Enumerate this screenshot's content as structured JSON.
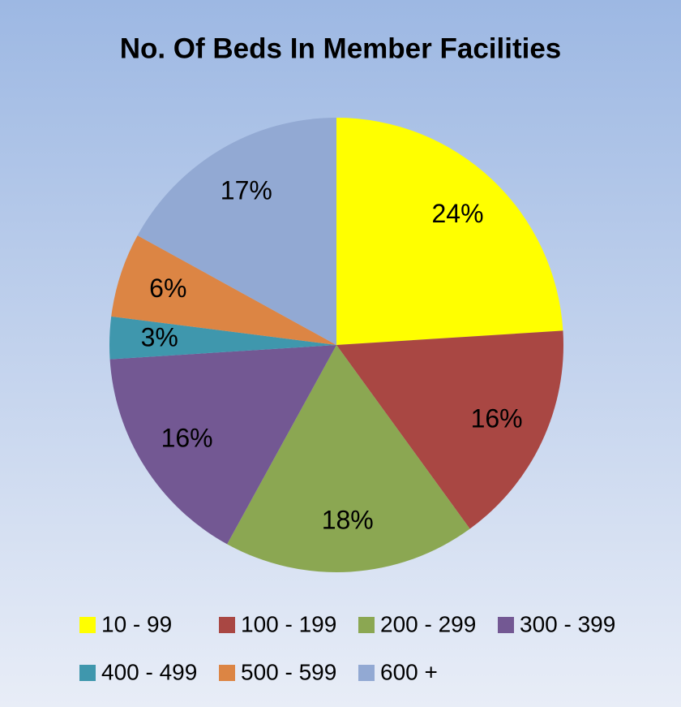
{
  "chart_data": {
    "type": "pie",
    "title": "No. Of Beds In Member Facilities",
    "categories": [
      "10 - 99",
      "100 - 199",
      "200 - 299",
      "300 - 399",
      "400 - 499",
      "500 - 599",
      "600 +"
    ],
    "values": [
      24,
      16,
      18,
      16,
      3,
      6,
      17
    ],
    "value_labels": [
      "24%",
      "16%",
      "18%",
      "16%",
      "3%",
      "6%",
      "17%"
    ],
    "colors": [
      "#ffff00",
      "#a94743",
      "#8ba752",
      "#735893",
      "#3f97ad",
      "#dc8544",
      "#92a9d3"
    ],
    "legend": "bottom"
  }
}
